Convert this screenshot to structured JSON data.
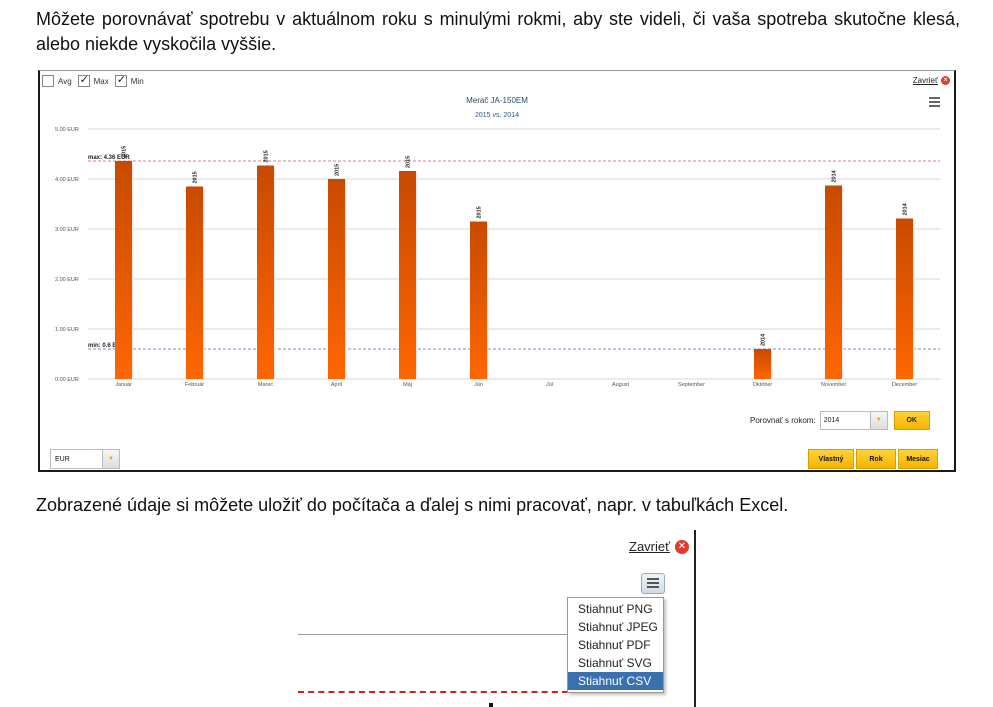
{
  "intro_text": "Môžete porovnávať spotrebu v aktuálnom roku s minulými rokmi, aby ste videli, či vaša spotreba skutočne klesá, alebo niekde vyskočila vyššie.",
  "widget": {
    "checkboxes": [
      {
        "label": "Avg",
        "checked": false
      },
      {
        "label": "Max",
        "checked": true
      },
      {
        "label": "Min",
        "checked": true
      }
    ],
    "close_label": "Zavrieť",
    "compare_label": "Porovnať s rokom:",
    "compare_year": "2014",
    "ok_label": "OK",
    "currency": "EUR",
    "period_buttons": [
      "Vlastný",
      "Rok",
      "Mesiac"
    ]
  },
  "chart_data": {
    "type": "bar",
    "title": "Merač JA-150EM",
    "subtitle": "2015 vs. 2014",
    "categories": [
      "Január",
      "Február",
      "Marec",
      "Apríl",
      "Máj",
      "Jún",
      "Júl",
      "August",
      "September",
      "Október",
      "November",
      "December"
    ],
    "values": [
      4.36,
      3.85,
      4.27,
      4.0,
      4.16,
      3.15,
      null,
      null,
      null,
      0.6,
      3.87,
      3.21
    ],
    "bar_labels": [
      "2015",
      "2015",
      "2015",
      "2015",
      "2015",
      "2015",
      "",
      "",
      "",
      "2014",
      "2014",
      "2014"
    ],
    "yticks": [
      "0.00 EUR",
      "1.00 EUR",
      "2.00 EUR",
      "3.00 EUR",
      "4.00 EUR",
      "5.00 EUR"
    ],
    "ylim": [
      0,
      5
    ],
    "max_line": {
      "value": 4.36,
      "label": "max: 4.36 EUR"
    },
    "min_line": {
      "value": 0.6,
      "label": "min: 0.6 EUR"
    },
    "bar_color": "#ff6600",
    "grid": true
  },
  "mid_text": "Zobrazené údaje si môžete uložiť do počítača a ďalej s nimi pracovať, napr. v tabuľkách Excel.",
  "export": {
    "close_label": "Zavrieť",
    "items": [
      "Stiahnuť PNG",
      "Stiahnuť JPEG",
      "Stiahnuť PDF",
      "Stiahnuť SVG",
      "Stiahnuť CSV"
    ],
    "active_item": "Stiahnuť CSV"
  }
}
